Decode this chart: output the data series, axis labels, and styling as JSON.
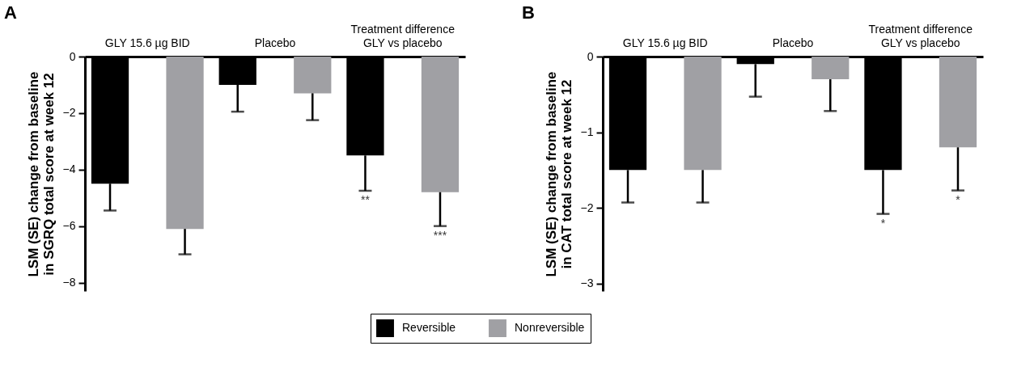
{
  "chart_data": [
    {
      "type": "bar",
      "title": "A",
      "ylabel": "LSM (SE) change from baseline\nin SGRQ total score at week 12",
      "categories": [
        "GLY 15.6 µg BID",
        "Placebo",
        "Treatment difference\nGLY vs placebo"
      ],
      "ylim": [
        -8.3,
        0
      ],
      "yticks": [
        -8,
        -6,
        -4,
        -2,
        0
      ],
      "grid": false,
      "legend": "bottom",
      "series": [
        {
          "name": "Reversible",
          "color": "#000000",
          "values": [
            -4.5,
            -1.0,
            -3.5
          ],
          "errors": [
            [
              -5.45,
              -4.5
            ],
            [
              -1.95,
              -1.0
            ],
            [
              -4.75,
              -3.5
            ]
          ]
        },
        {
          "name": "Nonreversible",
          "color": "#a0a0a4",
          "values": [
            -6.1,
            -1.3,
            -4.8
          ],
          "errors": [
            [
              -7.0,
              -6.1
            ],
            [
              -2.25,
              -1.3
            ],
            [
              -6.0,
              -4.8
            ]
          ]
        }
      ],
      "annotations": [
        "**",
        "***"
      ]
    },
    {
      "type": "bar",
      "title": "B",
      "ylabel": "LSM (SE) change from baseline\nin CAT total score at week 12",
      "categories": [
        "GLY 15.6 µg BID",
        "Placebo",
        "Treatment difference\nGLY vs placebo"
      ],
      "ylim": [
        -3.1,
        0
      ],
      "yticks": [
        -3,
        -2,
        -1,
        0
      ],
      "grid": false,
      "series": [
        {
          "color": "#000000",
          "values": [
            -1.5,
            -0.1,
            -1.5
          ],
          "errors": [
            [
              -1.93,
              -1.5
            ],
            [
              -0.53,
              -0.1
            ],
            [
              -2.08,
              -1.5
            ]
          ]
        },
        {
          "color": "#a0a0a4",
          "values": [
            -1.5,
            -0.3,
            -1.2
          ],
          "errors": [
            [
              -1.93,
              -1.5
            ],
            [
              -0.72,
              -0.3
            ],
            [
              -1.77,
              -1.2
            ]
          ]
        }
      ],
      "annotations": [
        "*",
        "*"
      ]
    }
  ]
}
